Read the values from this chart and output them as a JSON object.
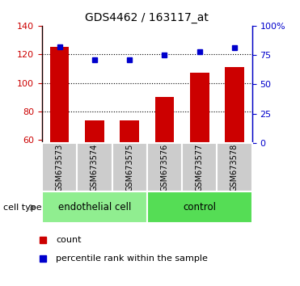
{
  "title": "GDS4462 / 163117_at",
  "samples": [
    "GSM673573",
    "GSM673574",
    "GSM673575",
    "GSM673576",
    "GSM673577",
    "GSM673578"
  ],
  "bar_values": [
    125,
    74,
    74,
    90,
    107,
    111
  ],
  "percentile_values": [
    82,
    71,
    71,
    75,
    78,
    81
  ],
  "bar_color": "#cc0000",
  "dot_color": "#0000cc",
  "ylim_left": [
    58,
    140
  ],
  "ylim_right": [
    0,
    100
  ],
  "yticks_left": [
    60,
    80,
    100,
    120,
    140
  ],
  "yticks_right": [
    0,
    25,
    50,
    75,
    100
  ],
  "ytick_labels_right": [
    "0",
    "25",
    "50",
    "75",
    "100%"
  ],
  "grid_values": [
    80,
    100,
    120
  ],
  "groups": [
    {
      "label": "endothelial cell",
      "indices": [
        0,
        1,
        2
      ],
      "color": "#90ee90"
    },
    {
      "label": "control",
      "indices": [
        3,
        4,
        5
      ],
      "color": "#55dd55"
    }
  ],
  "cell_type_label": "cell type",
  "legend_count": "count",
  "legend_percentile": "percentile rank within the sample",
  "bar_width": 0.55,
  "left_axis_color": "#cc0000",
  "right_axis_color": "#0000cc",
  "sample_box_color": "#cccccc",
  "sample_box_edge": "#888888"
}
